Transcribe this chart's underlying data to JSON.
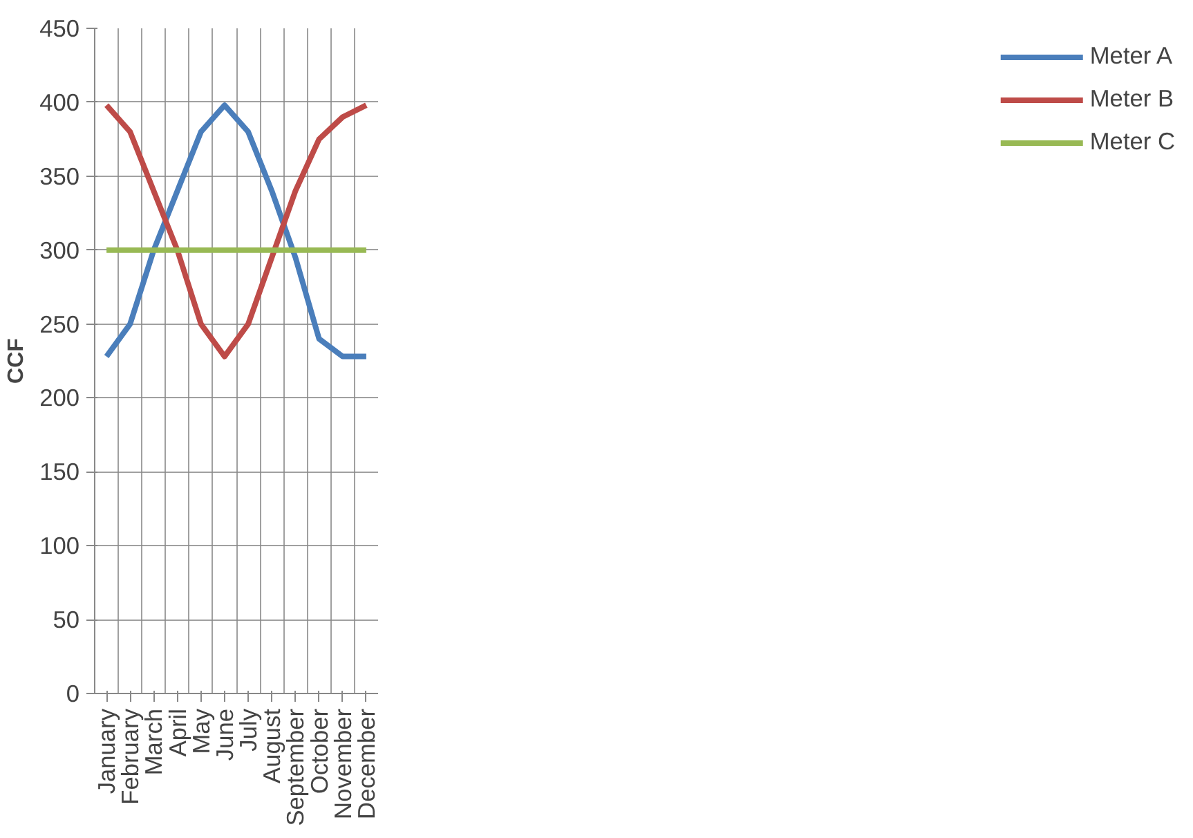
{
  "chart_data": {
    "type": "line",
    "ylabel": "CCF",
    "categories": [
      "January",
      "February",
      "March",
      "April",
      "May",
      "June",
      "July",
      "August",
      "September",
      "October",
      "November",
      "December"
    ],
    "series": [
      {
        "name": "Meter A",
        "color": "#4a7ebb",
        "values": [
          228,
          250,
          300,
          340,
          380,
          398,
          380,
          340,
          295,
          240,
          228,
          228
        ]
      },
      {
        "name": "Meter B",
        "color": "#be4b48",
        "values": [
          398,
          380,
          340,
          300,
          250,
          228,
          250,
          295,
          340,
          375,
          390,
          398
        ]
      },
      {
        "name": "Meter C",
        "color": "#98b954",
        "values": [
          300,
          300,
          300,
          300,
          300,
          300,
          300,
          300,
          300,
          300,
          300,
          300
        ]
      }
    ],
    "ylim": [
      0,
      450
    ],
    "yticks": [
      0,
      50,
      100,
      150,
      200,
      250,
      300,
      350,
      400,
      450
    ],
    "grid": true,
    "legend": "right",
    "marker": "none",
    "line_style": "solid"
  }
}
